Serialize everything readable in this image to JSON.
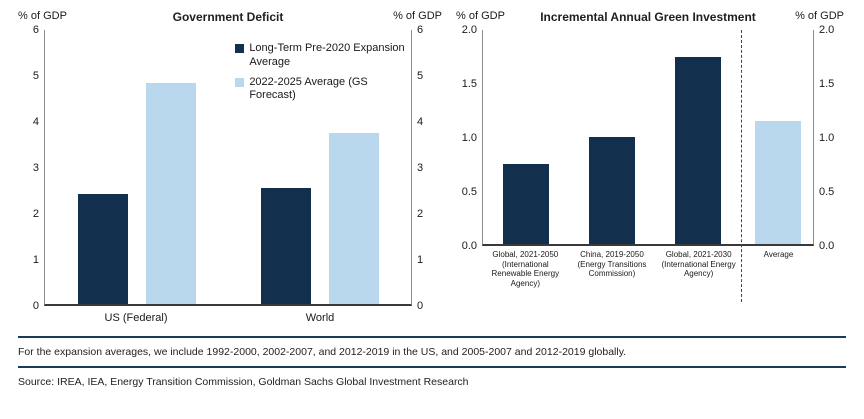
{
  "page": {
    "footnote": "For the expansion averages, we include 1992-2000, 2002-2007, and 2012-2019 in the US, and 2005-2007 and 2012-2019 globally.",
    "source": "Source: IREA, IEA, Energy Transition Commission, Goldman Sachs Global Investment Research"
  },
  "colors": {
    "dark": "#12304e",
    "light": "#b9d8ee"
  },
  "chart_data": [
    {
      "type": "bar",
      "title": "Government Deficit",
      "ylabel_left": "% of GDP",
      "ylabel_right": "% of GDP",
      "ylim": [
        0,
        6
      ],
      "yticks": [
        "6",
        "5",
        "4",
        "3",
        "2",
        "1",
        "0"
      ],
      "grid": false,
      "legend_position": "upper-right-inside",
      "categories": [
        "US (Federal)",
        "World"
      ],
      "series": [
        {
          "name": "Long-Term Pre-2020 Expansion Average",
          "color": "dark",
          "values": [
            2.4,
            2.55
          ]
        },
        {
          "name": "2022-2025 Average (GS Forecast)",
          "color": "light",
          "values": [
            4.85,
            3.75
          ]
        }
      ]
    },
    {
      "type": "bar",
      "title": "Incremental Annual Green Investment",
      "ylabel_left": "% of GDP",
      "ylabel_right": "% of GDP",
      "ylim": [
        0,
        2
      ],
      "yticks": [
        "2.0",
        "1.5",
        "1.0",
        "0.5",
        "0.0"
      ],
      "grid": false,
      "categories": [
        "Global, 2021-2050 (International Renewable Energy Agency)",
        "China, 2019-2050 (Energy Transitions Commission)",
        "Global, 2021-2030 (International Energy Agency)",
        "Average"
      ],
      "values": [
        0.75,
        1.0,
        1.75,
        1.15
      ],
      "bar_colors": [
        "dark",
        "dark",
        "dark",
        "light"
      ],
      "separator_after_index": 2
    }
  ]
}
